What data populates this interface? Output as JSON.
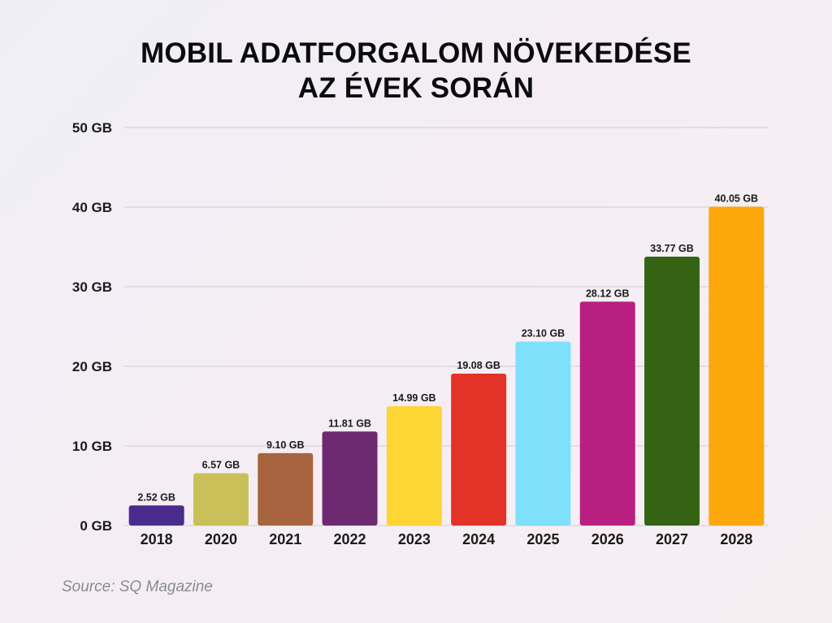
{
  "title_lines": [
    "MOBIL ADATFORGALOM NÖVEKEDÉSE",
    "AZ ÉVEK SORÁN"
  ],
  "source": "Source: SQ Magazine",
  "chart_data": {
    "type": "bar",
    "title": "MOBIL ADATFORGALOM NÖVEKEDÉSE AZ ÉVEK SORÁN",
    "xlabel": "",
    "ylabel": "",
    "categories": [
      "2018",
      "2020",
      "2021",
      "2022",
      "2023",
      "2024",
      "2025",
      "2026",
      "2027",
      "2028"
    ],
    "values": [
      2.52,
      6.57,
      9.1,
      11.81,
      14.99,
      19.08,
      23.1,
      28.12,
      33.77,
      40.05
    ],
    "data_labels": [
      "2.52 GB",
      "6.57 GB",
      "9.10 GB",
      "11.81 GB",
      "14.99 GB",
      "19.08 GB",
      "23.10 GB",
      "28.12 GB",
      "33.77 GB",
      "40.05 GB"
    ],
    "colors": [
      "#4a2a8c",
      "#c9c05a",
      "#a8643f",
      "#6e2a70",
      "#fdd535",
      "#e33227",
      "#7fe0fb",
      "#b81f80",
      "#346413",
      "#fca70b"
    ],
    "ylim": [
      0,
      50
    ],
    "yticks": [
      0,
      10,
      20,
      30,
      40,
      50
    ],
    "ytick_labels": [
      "0 GB",
      "10 GB",
      "20 GB",
      "30 GB",
      "40 GB",
      "50 GB"
    ],
    "grid": true,
    "legend": "none"
  }
}
